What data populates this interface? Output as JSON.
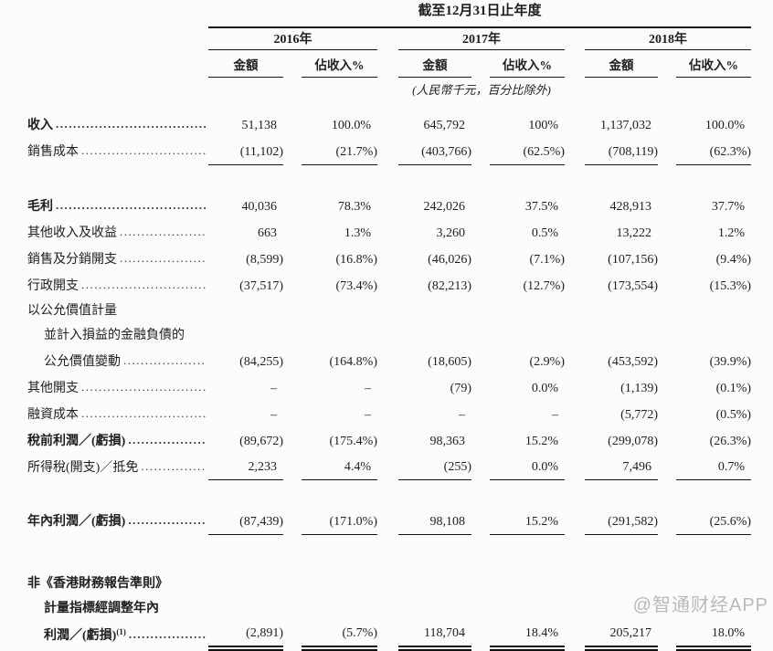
{
  "table": {
    "title": "截至12月31日止年度",
    "unit_note": "(人民幣千元，百分比除外)",
    "year_groups": [
      {
        "year": "2016年",
        "amount_label": "金額",
        "pct_label": "佔收入%"
      },
      {
        "year": "2017年",
        "amount_label": "金額",
        "pct_label": "佔收入%"
      },
      {
        "year": "2018年",
        "amount_label": "金額",
        "pct_label": "佔收入%"
      }
    ],
    "rows": [
      {
        "label": "收入",
        "bold": true,
        "leader": true,
        "values": [
          "51,138",
          "100.0%",
          "645,792",
          "100%",
          "1,137,032",
          "100.0%"
        ]
      },
      {
        "label": "銷售成本",
        "leader": true,
        "values": [
          "(11,102)",
          "(21.7%)",
          "(403,766)",
          "(62.5%)",
          "(708,119)",
          "(62.3%)"
        ],
        "rule": "single",
        "gap_after": "sm"
      },
      {
        "label": "毛利",
        "bold": true,
        "leader": true,
        "values": [
          "40,036",
          "78.3%",
          "242,026",
          "37.5%",
          "428,913",
          "37.7%"
        ]
      },
      {
        "label": "其他收入及收益",
        "leader": true,
        "values": [
          "663",
          "1.3%",
          "3,260",
          "0.5%",
          "13,222",
          "1.2%"
        ]
      },
      {
        "label": "銷售及分銷開支",
        "leader": true,
        "values": [
          "(8,599)",
          "(16.8%)",
          "(46,026)",
          "(7.1%)",
          "(107,156)",
          "(9.4%)"
        ]
      },
      {
        "label": "行政開支",
        "leader": true,
        "values": [
          "(37,517)",
          "(73.4%)",
          "(82,213)",
          "(12.7%)",
          "(173,554)",
          "(15.3%)"
        ]
      },
      {
        "label": "以公允價值計量"
      },
      {
        "label": "並計入損益的金融負債的",
        "indent": true
      },
      {
        "label": "公允價值變動",
        "indent": true,
        "leader": true,
        "values": [
          "(84,255)",
          "(164.8%)",
          "(18,605)",
          "(2.9%)",
          "(453,592)",
          "(39.9%)"
        ]
      },
      {
        "label": "其他開支",
        "leader": true,
        "values": [
          "–",
          "–",
          "(79)",
          "0.0%",
          "(1,139)",
          "(0.1%)"
        ]
      },
      {
        "label": "融資成本",
        "leader": true,
        "values": [
          "–",
          "–",
          "–",
          "–",
          "(5,772)",
          "(0.5%)"
        ]
      },
      {
        "label": "稅前利潤／(虧損)",
        "bold": true,
        "leader": true,
        "values": [
          "(89,672)",
          "(175.4%)",
          "98,363",
          "15.2%",
          "(299,078)",
          "(26.3%)"
        ]
      },
      {
        "label": "所得稅(開支)／抵免",
        "leader": true,
        "values": [
          "2,233",
          "4.4%",
          "(255)",
          "0.0%",
          "7,496",
          "0.7%"
        ],
        "rule": "single",
        "gap_after": "sm"
      },
      {
        "label": "年內利潤／(虧損)",
        "bold": true,
        "leader": true,
        "values": [
          "(87,439)",
          "(171.0%)",
          "98,108",
          "15.2%",
          "(291,582)",
          "(25.6%)"
        ],
        "rule": "single",
        "gap_after": "lg"
      },
      {
        "label": "非《香港財務報告準則》",
        "bold": true
      },
      {
        "label": "計量指標經調整年內",
        "bold": true,
        "indent": true
      },
      {
        "label": "利潤／(虧損)",
        "sup": "(1)",
        "bold": true,
        "indent": true,
        "leader": true,
        "values": [
          "(2,891)",
          "(5.7%)",
          "118,704",
          "18.4%",
          "205,217",
          "18.0%"
        ],
        "rule": "double"
      }
    ]
  },
  "colors": {
    "background": "#fcfcfc",
    "text": "#1e1e1e",
    "rule": "#111111",
    "watermark": "#b9b9b9"
  },
  "watermark": "@智通财经APP"
}
